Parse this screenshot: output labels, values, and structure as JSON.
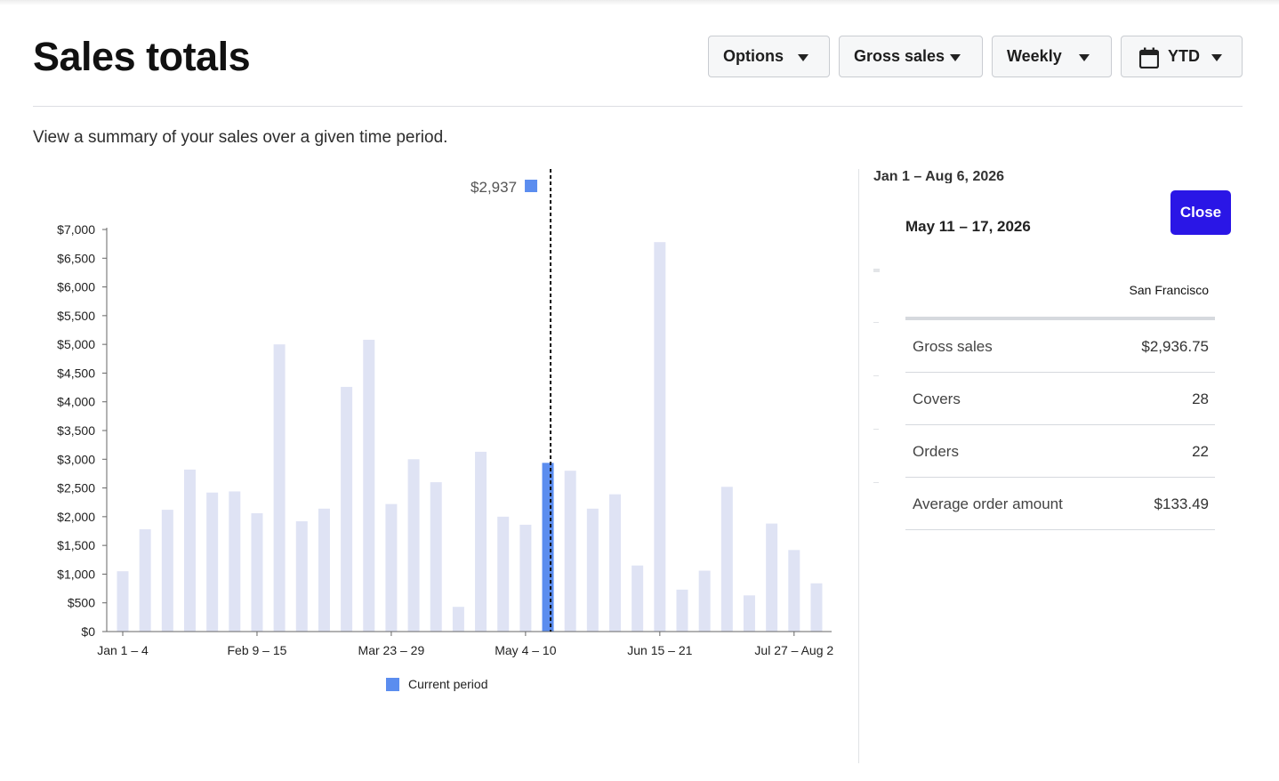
{
  "header": {
    "title": "Sales totals",
    "subtitle": "View a summary of your sales over a given time period."
  },
  "toolbar": {
    "options_label": "Options",
    "metric_label": "Gross sales",
    "interval_label": "Weekly",
    "range_label": "YTD"
  },
  "colors": {
    "accent": "#2a16e6",
    "bar": "#dfe3f4",
    "current_bar": "#5b8def"
  },
  "icons": {
    "caret": "chevron-down-icon",
    "calendar": "calendar-icon"
  },
  "chart_data": {
    "type": "bar",
    "ylim": [
      0,
      7000
    ],
    "yticks": [
      "$0",
      "$500",
      "$1,000",
      "$1,500",
      "$2,000",
      "$2,500",
      "$3,000",
      "$3,500",
      "$4,000",
      "$4,500",
      "$5,000",
      "$5,500",
      "$6,000",
      "$6,500",
      "$7,000"
    ],
    "xtick_labels": [
      {
        "index": 0,
        "label": "Jan 1 – 4"
      },
      {
        "index": 6,
        "label": "Feb 9 – 15"
      },
      {
        "index": 12,
        "label": "Mar 23 – 29"
      },
      {
        "index": 18,
        "label": "May 4 – 10"
      },
      {
        "index": 24,
        "label": "Jun 15 – 21"
      },
      {
        "index": 30,
        "label": "Jul 27 – Aug 2"
      }
    ],
    "values": [
      1050,
      1780,
      2120,
      2820,
      2420,
      2440,
      2060,
      5000,
      1920,
      2140,
      4260,
      5080,
      2220,
      3000,
      2600,
      430,
      3130,
      2000,
      1860,
      2937,
      2800,
      2140,
      2390,
      1150,
      6780,
      730,
      1060,
      2520,
      630,
      1880,
      1420,
      840
    ],
    "highlight_index": 19,
    "highlight_label": "$2,937",
    "legend": "Current period",
    "grid": false
  },
  "panel": {
    "range": "Jan 1 – Aug 6, 2026",
    "title": "May 11 – 17, 2026",
    "close_label": "Close",
    "location": "San Francisco",
    "rows": [
      {
        "label": "Gross sales",
        "value": "$2,936.75"
      },
      {
        "label": "Covers",
        "value": "28"
      },
      {
        "label": "Orders",
        "value": "22"
      },
      {
        "label": "Average order amount",
        "value": "$133.49"
      }
    ]
  }
}
